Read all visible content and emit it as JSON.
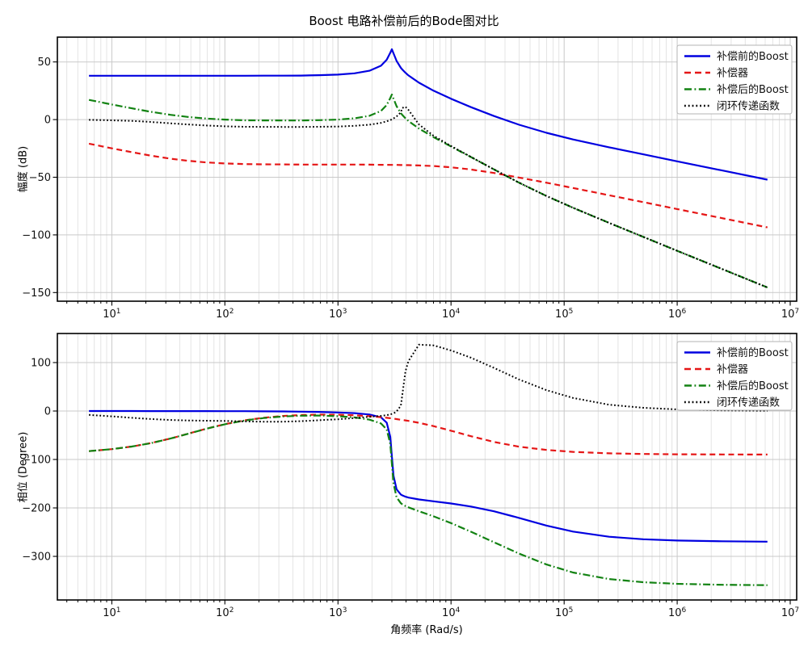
{
  "chart_data": {
    "type": "line",
    "title": "Boost 电路补偿前后的Bode图对比",
    "xlabel": "角频率 (Rad/s)",
    "xscale": "log",
    "xlim": [
      3.3,
      11400000
    ],
    "xticks": [
      10,
      100,
      1000,
      10000,
      100000,
      1000000,
      10000000
    ],
    "grid": {
      "major_color": "#c9c9c9",
      "minor_color": "#e1e1e1"
    },
    "legend": {
      "location": "upper right",
      "labels": [
        "补偿前的Boost",
        "补偿器",
        "补偿后的Boost",
        "闭环传递函数"
      ]
    },
    "x": [
      6.28,
      10,
      15,
      22,
      33,
      47,
      68,
      100,
      150,
      220,
      330,
      470,
      680,
      1000,
      1400,
      1900,
      2400,
      2700,
      2900,
      3000,
      3100,
      3300,
      3600,
      3700,
      3950,
      4200,
      5200,
      7000,
      10000,
      15000,
      24000,
      40000,
      70000,
      120000,
      250000,
      500000,
      1000000,
      2500000,
      6280000
    ],
    "subplots": [
      {
        "key": "magnitude",
        "ylabel": "幅度 (dB)",
        "ylim": [
          -157.5,
          71.5
        ],
        "yticks": [
          50,
          0,
          -50,
          -100,
          -150
        ],
        "series": [
          {
            "key": "pre-boost",
            "name": "补偿前的Boost",
            "color": "#0000e0",
            "style": "solid",
            "width": 2.2,
            "values": [
              38,
              38,
              38,
              38,
              38,
              38,
              38,
              38,
              38,
              38.1,
              38.1,
              38.2,
              38.5,
              39,
              40.1,
              42.4,
              46.7,
              51.9,
              57.9,
              61,
              57.5,
              50.9,
              44.9,
              43.5,
              40.6,
              38.3,
              32,
              25.1,
              18.1,
              10.8,
              3.1,
              -4.5,
              -11.5,
              -17.2,
              -24,
              -30.1,
              -36.2,
              -44.1,
              -52.1
            ]
          },
          {
            "key": "compensator",
            "name": "补偿器",
            "color": "#e51616",
            "style": "dashed",
            "width": 2.2,
            "values": [
              -20.9,
              -24.9,
              -28.2,
              -31.2,
              -33.9,
              -35.7,
              -37.1,
              -38,
              -38.6,
              -38.8,
              -38.9,
              -39,
              -39,
              -39,
              -39,
              -39.1,
              -39.2,
              -39.2,
              -39.3,
              -39.3,
              -39.3,
              -39.3,
              -39.4,
              -39.4,
              -39.5,
              -39.5,
              -39.8,
              -40.3,
              -41.4,
              -43.3,
              -46.3,
              -50.3,
              -54.8,
              -59.3,
              -65.6,
              -71.6,
              -77.6,
              -85.5,
              -93.5
            ]
          },
          {
            "key": "post-boost",
            "name": "补偿后的Boost",
            "color": "#128212",
            "style": "dashdot",
            "width": 2.2,
            "values": [
              17.1,
              13.1,
              9.8,
              6.8,
              4.1,
              2.3,
              0.9,
              0,
              -0.6,
              -0.7,
              -0.8,
              -0.8,
              -0.5,
              0,
              1.1,
              3.3,
              7.5,
              12.7,
              18.6,
              21.7,
              18.2,
              11.6,
              5.5,
              4.1,
              1.1,
              -1.2,
              -7.8,
              -15.2,
              -23.3,
              -32.5,
              -43.2,
              -54.8,
              -66.3,
              -76.5,
              -89.6,
              -101.7,
              -113.8,
              -129.6,
              -145.6
            ]
          },
          {
            "key": "closed-loop",
            "name": "闭环传递函数",
            "color": "#000000",
            "style": "dotted",
            "width": 2,
            "values": [
              -0.2,
              -0.6,
              -1.1,
              -2,
              -3.2,
              -4.2,
              -5.1,
              -5.8,
              -6.2,
              -6.3,
              -6.4,
              -6.4,
              -6.2,
              -6,
              -5.4,
              -4.4,
              -2.9,
              -1.5,
              -0.4,
              0.2,
              1,
              2.7,
              6.3,
              10,
              11.1,
              8.4,
              -4.2,
              -14,
              -22.9,
              -32.4,
              -43.2,
              -54.8,
              -66.3,
              -76.5,
              -89.6,
              -101.7,
              -113.8,
              -129.6,
              -145.6
            ]
          }
        ]
      },
      {
        "key": "phase",
        "ylabel": "相位 (Degree)",
        "ylim": [
          -390,
          160
        ],
        "yticks": [
          100,
          0,
          -100,
          -200,
          -300
        ],
        "series": [
          {
            "key": "pre-boost",
            "name": "补偿前的Boost",
            "color": "#0000e0",
            "style": "solid",
            "width": 2.2,
            "values": [
              0,
              0,
              0,
              -0.1,
              -0.1,
              -0.1,
              -0.2,
              -0.3,
              -0.4,
              -0.6,
              -0.9,
              -1.3,
              -1.9,
              -3,
              -4.4,
              -7.2,
              -13,
              -24,
              -53.1,
              -93.7,
              -133.5,
              -161.5,
              -172.3,
              -174,
              -176.8,
              -178.6,
              -182.5,
              -186.3,
              -190.8,
              -197.1,
              -207,
              -220.7,
              -236.5,
              -248.9,
              -259.5,
              -264.7,
              -267.3,
              -268.9,
              -269.6
            ]
          },
          {
            "key": "compensator",
            "name": "补偿器",
            "color": "#e51616",
            "style": "dashed",
            "width": 2.2,
            "values": [
              -82.8,
              -78.7,
              -73.4,
              -66.4,
              -56.8,
              -47,
              -36.6,
              -27.1,
              -19.1,
              -13.9,
              -10.2,
              -8.4,
              -7.5,
              -7.7,
              -8.8,
              -10.6,
              -12.7,
              -14,
              -14.8,
              -15.2,
              -15.7,
              -16.6,
              -18,
              -18.4,
              -19.3,
              -20.3,
              -24.4,
              -31.1,
              -40.6,
              -52,
              -63.9,
              -73.7,
              -80.4,
              -84.4,
              -87.3,
              -88.7,
              -89.3,
              -89.7,
              -89.9
            ]
          },
          {
            "key": "post-boost",
            "name": "补偿后的Boost",
            "color": "#128212",
            "style": "dashdot",
            "width": 2.2,
            "values": [
              -82.8,
              -78.7,
              -73.4,
              -66.5,
              -56.9,
              -47.1,
              -36.8,
              -27.4,
              -19.5,
              -14.5,
              -11.1,
              -9.7,
              -9.4,
              -10.7,
              -13.2,
              -17.8,
              -25.7,
              -38,
              -67.9,
              -108.9,
              -149.2,
              -178.1,
              -190.3,
              -192.4,
              -196.1,
              -198.9,
              -206.9,
              -217.4,
              -231.4,
              -249.1,
              -270.9,
              -294.4,
              -316.9,
              -333.3,
              -346.8,
              -353.4,
              -356.6,
              -358.6,
              -359.5
            ]
          },
          {
            "key": "closed-loop",
            "name": "闭环传递函数",
            "color": "#000000",
            "style": "dotted",
            "width": 2,
            "values": [
              -8,
              -11,
              -14,
              -16.5,
              -18.5,
              -19.5,
              -20,
              -20.5,
              -21.5,
              -22,
              -22,
              -21,
              -19,
              -17,
              -14.5,
              -12,
              -10,
              -8.5,
              -7,
              -6,
              -5,
              -1,
              11,
              32,
              82,
              103,
              137,
              135.5,
              125,
              110,
              89,
              65,
              43,
              27,
              13,
              6.6,
              3.4,
              1.4,
              0.5
            ]
          }
        ]
      }
    ]
  }
}
